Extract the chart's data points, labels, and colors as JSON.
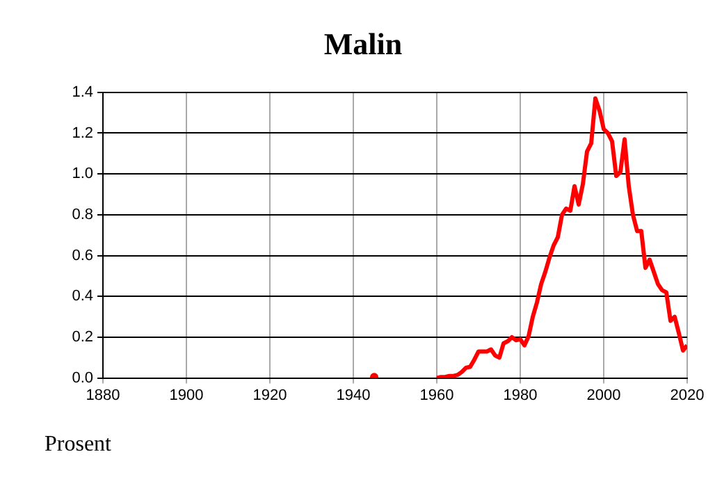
{
  "chart_data": {
    "type": "line",
    "title": "Malin",
    "annotations": [
      "Prosent"
    ],
    "x": [
      1945,
      1946,
      1959,
      1960,
      1961,
      1962,
      1963,
      1964,
      1965,
      1966,
      1967,
      1968,
      1969,
      1970,
      1971,
      1972,
      1973,
      1974,
      1975,
      1976,
      1977,
      1978,
      1979,
      1980,
      1981,
      1982,
      1983,
      1984,
      1985,
      1986,
      1987,
      1988,
      1989,
      1990,
      1991,
      1992,
      1993,
      1994,
      1995,
      1996,
      1997,
      1998,
      1999,
      2000,
      2001,
      2002,
      2003,
      2004,
      2005,
      2006,
      2007,
      2008,
      2009,
      2010,
      2011,
      2012,
      2013,
      2014,
      2015,
      2016,
      2017,
      2018,
      2019,
      2020
    ],
    "series": [
      {
        "color": "#ff0000",
        "values": [
          0.005,
          null,
          null,
          0,
          0.005,
          0.005,
          0.01,
          0.01,
          0.015,
          0.03,
          0.05,
          0.055,
          0.09,
          0.13,
          0.13,
          0.13,
          0.14,
          0.11,
          0.1,
          0.17,
          0.18,
          0.2,
          0.185,
          0.19,
          0.16,
          0.205,
          0.3,
          0.37,
          0.46,
          0.52,
          0.59,
          0.65,
          0.69,
          0.8,
          0.83,
          0.82,
          0.94,
          0.85,
          0.95,
          1.11,
          1.15,
          1.37,
          1.31,
          1.22,
          1.2,
          1.16,
          0.99,
          1.01,
          1.17,
          0.94,
          0.8,
          0.72,
          0.72,
          0.54,
          0.58,
          0.52,
          0.46,
          0.43,
          0.42,
          0.28,
          0.3,
          0.22,
          0.135,
          0.16
        ]
      }
    ],
    "xlim": [
      1880,
      2020
    ],
    "xticks": [
      1880,
      1900,
      1920,
      1940,
      1960,
      1980,
      2000,
      2020
    ],
    "ylim": [
      0,
      1.4
    ],
    "yticks": [
      {
        "value": 0,
        "label": "0.0"
      },
      0.2,
      0.4,
      0.6,
      0.8,
      {
        "value": 1,
        "label": "1.0"
      },
      1.2,
      1.4
    ],
    "grid": true,
    "legend": false,
    "marker": "none",
    "line_style": "solid"
  }
}
